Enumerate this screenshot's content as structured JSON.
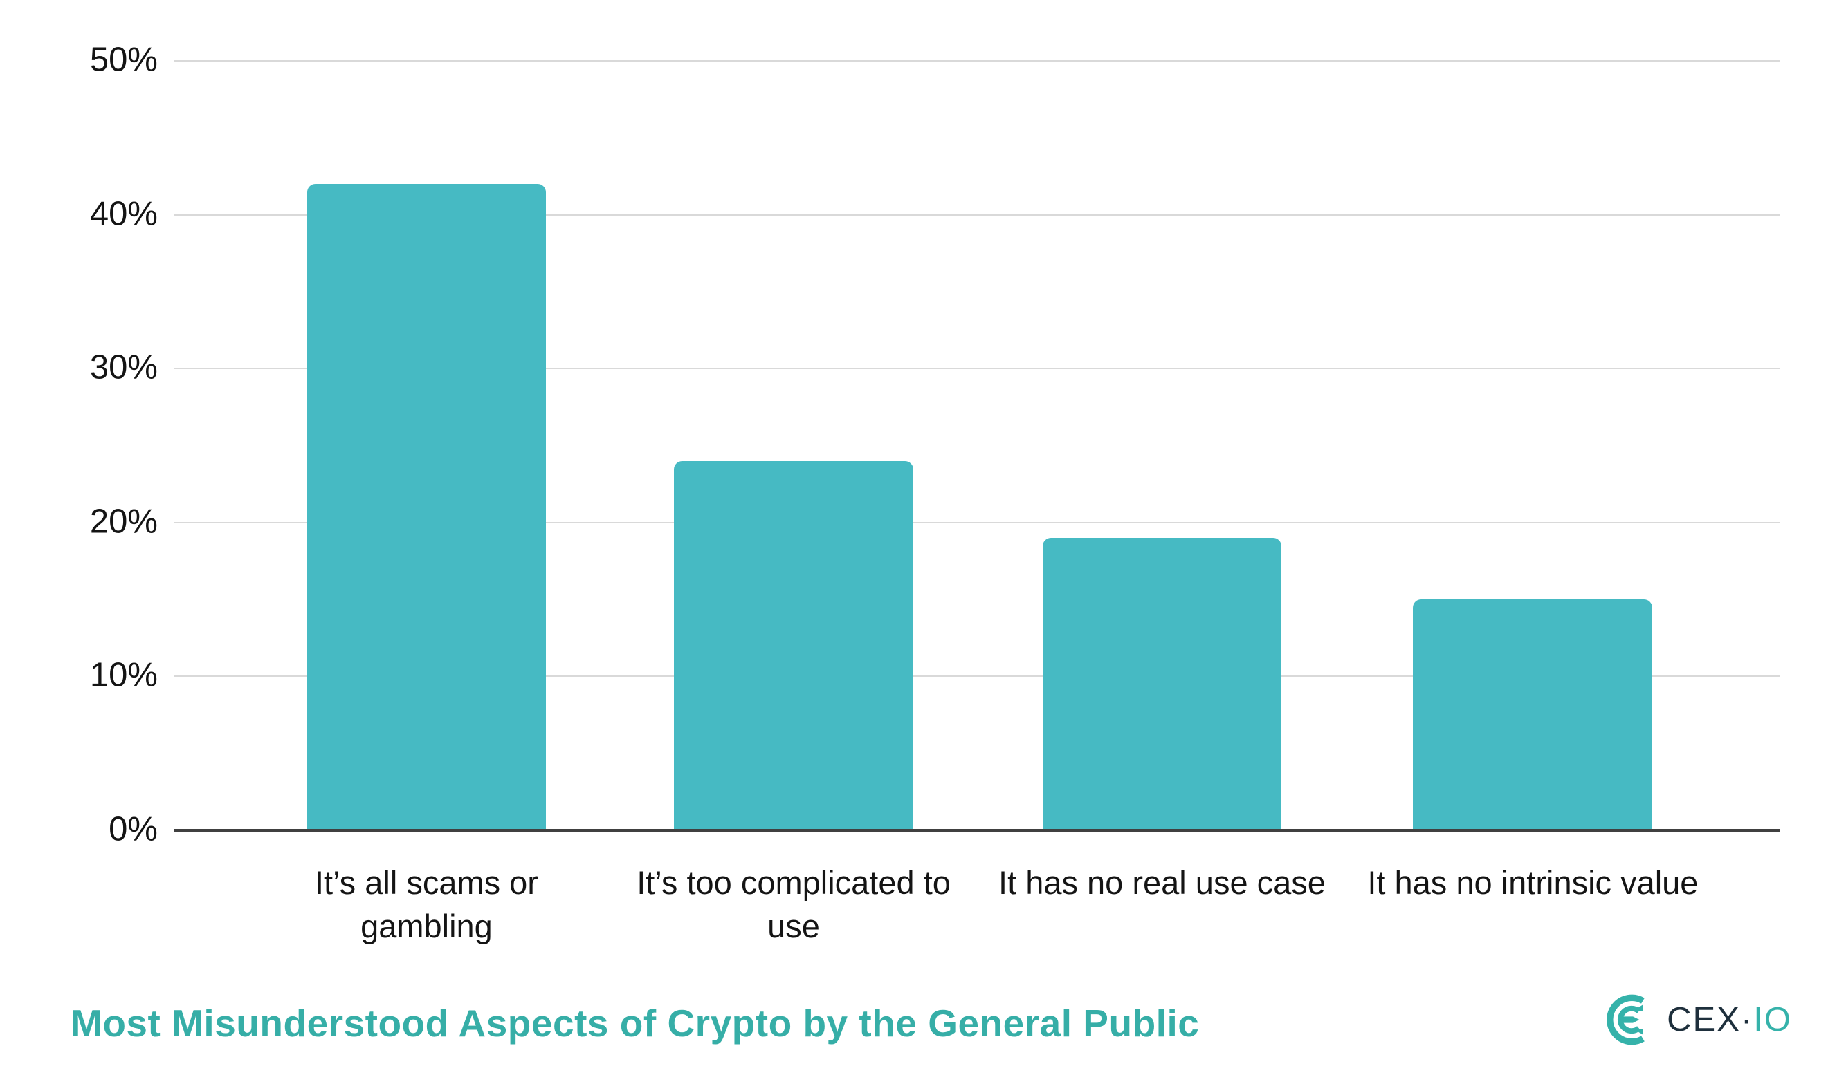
{
  "chart_data": {
    "type": "bar",
    "title": "Most Misunderstood Aspects of Crypto by the General Public",
    "categories": [
      "It’s all scams or gambling",
      "It’s too complicated to use",
      "It has no real use case",
      "It has no intrinsic value"
    ],
    "values": [
      42,
      24,
      19,
      15
    ],
    "value_unit": "%",
    "xlabel": "",
    "ylabel": "",
    "ylim": [
      0,
      50
    ],
    "yticks": [
      0,
      10,
      20,
      30,
      40,
      50
    ],
    "ytick_labels": [
      "0%",
      "10%",
      "20%",
      "30%",
      "40%",
      "50%"
    ],
    "bar_color": "#46BAC3",
    "gridline_color": "#d9d9d9",
    "axis_line_color": "#404040",
    "grid": "horizontal",
    "legend": "none"
  },
  "branding": {
    "title_color": "#36AEA7",
    "logo": {
      "text_primary": "CEX",
      "separator": "·",
      "text_secondary": "IO",
      "navy_color": "#1E2F3C",
      "teal_color": "#35B2AA"
    }
  }
}
